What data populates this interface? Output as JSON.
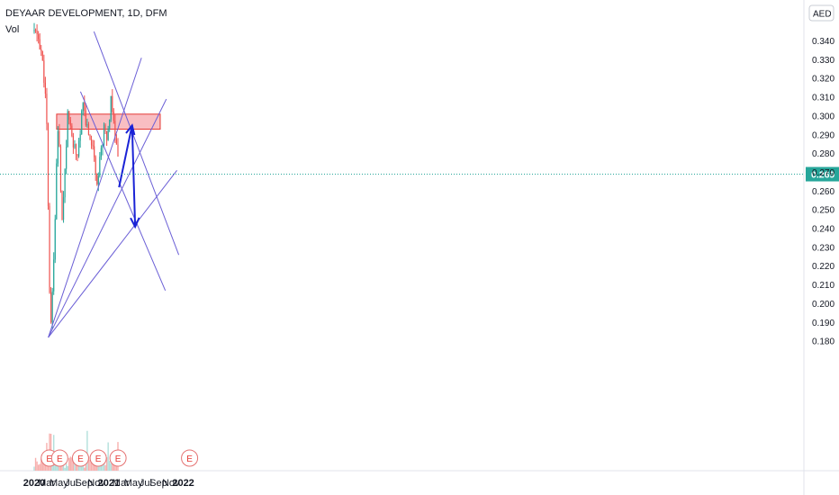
{
  "header": {
    "symbol": "DEYAAR DEVELOPMENT, 1D, DFM",
    "indicator": "Vol"
  },
  "currency_badge": "AED",
  "price_label": "0.269",
  "earnings_marker": "E",
  "colors": {
    "up": "#26a69a",
    "down": "#ef5350",
    "vol_up": "#b2dfdb",
    "vol_down": "#f7b0ae",
    "trendline": "#6b5fd6",
    "arrow": "#1a23d6",
    "zone_fill": "#f7a8ad",
    "zone_stroke": "#e53935",
    "price_tag": "#26a69a"
  },
  "chart_data": {
    "type": "candlestick",
    "title": "",
    "y_ticks": [
      "0.340",
      "0.330",
      "0.320",
      "0.310",
      "0.300",
      "0.290",
      "0.280",
      "0.270",
      "0.260",
      "0.250",
      "0.240",
      "0.230",
      "0.220",
      "0.210",
      "0.200",
      "0.190",
      "0.180"
    ],
    "x_ticks": [
      "2020",
      "Mar",
      "May",
      "Jul",
      "Sep",
      "Nov",
      "2021",
      "Mar",
      "May",
      "Jul",
      "Sep",
      "Nov",
      "2022"
    ],
    "ylim": [
      0.178,
      0.347
    ],
    "last_price": 0.269,
    "resistance_zone": {
      "low": 0.293,
      "high": 0.301,
      "from": "2020-04-20",
      "to": "2021-09-10"
    },
    "earnings_dates": [
      "2020-03-15",
      "2020-05-05",
      "2020-08-15",
      "2020-11-10",
      "2021-02-15",
      "2022-02-01"
    ],
    "trendlines": [
      {
        "from": [
          "2020-03-10",
          0.182
        ],
        "to": [
          "2021-06-10",
          0.331
        ]
      },
      {
        "from": [
          "2020-03-10",
          0.182
        ],
        "to": [
          "2021-10-10",
          0.309
        ]
      },
      {
        "from": [
          "2020-03-10",
          0.182
        ],
        "to": [
          "2021-12-01",
          0.271
        ]
      },
      {
        "from": [
          "2020-08-15",
          0.313
        ],
        "to": [
          "2021-10-05",
          0.207
        ]
      },
      {
        "from": [
          "2020-10-20",
          0.345
        ],
        "to": [
          "2021-12-10",
          0.226
        ]
      }
    ],
    "projection": [
      {
        "from": [
          "2021-02-20",
          0.262
        ],
        "to": [
          "2021-04-25",
          0.295
        ]
      },
      {
        "from": [
          "2021-04-25",
          0.295
        ],
        "to": [
          "2021-05-10",
          0.241
        ]
      }
    ],
    "price_path": [
      [
        "2020-01-01",
        0.345
      ],
      [
        "2020-01-20",
        0.342
      ],
      [
        "2020-02-05",
        0.334
      ],
      [
        "2020-02-20",
        0.318
      ],
      [
        "2020-02-28",
        0.305
      ],
      [
        "2020-03-03",
        0.292
      ],
      [
        "2020-03-07",
        0.268
      ],
      [
        "2020-03-10",
        0.25
      ],
      [
        "2020-03-13",
        0.22
      ],
      [
        "2020-03-17",
        0.2
      ],
      [
        "2020-03-22",
        0.19
      ],
      [
        "2020-03-28",
        0.205
      ],
      [
        "2020-04-05",
        0.222
      ],
      [
        "2020-04-12",
        0.245
      ],
      [
        "2020-04-20",
        0.275
      ],
      [
        "2020-04-26",
        0.292
      ],
      [
        "2020-05-03",
        0.284
      ],
      [
        "2020-05-10",
        0.26
      ],
      [
        "2020-05-17",
        0.246
      ],
      [
        "2020-05-24",
        0.255
      ],
      [
        "2020-06-01",
        0.272
      ],
      [
        "2020-06-08",
        0.286
      ],
      [
        "2020-06-15",
        0.308
      ],
      [
        "2020-06-20",
        0.3
      ],
      [
        "2020-06-28",
        0.292
      ],
      [
        "2020-07-08",
        0.286
      ],
      [
        "2020-07-18",
        0.283
      ],
      [
        "2020-07-28",
        0.279
      ],
      [
        "2020-08-05",
        0.284
      ],
      [
        "2020-08-15",
        0.29
      ],
      [
        "2020-08-22",
        0.309
      ],
      [
        "2020-08-30",
        0.304
      ],
      [
        "2020-09-08",
        0.299
      ],
      [
        "2020-09-18",
        0.293
      ],
      [
        "2020-09-28",
        0.29
      ],
      [
        "2020-10-08",
        0.285
      ],
      [
        "2020-10-18",
        0.282
      ],
      [
        "2020-10-28",
        0.272
      ],
      [
        "2020-11-04",
        0.266
      ],
      [
        "2020-11-12",
        0.27
      ],
      [
        "2020-11-20",
        0.278
      ],
      [
        "2020-11-30",
        0.286
      ],
      [
        "2020-12-08",
        0.294
      ],
      [
        "2020-12-18",
        0.289
      ],
      [
        "2020-12-28",
        0.292
      ],
      [
        "2021-01-08",
        0.3
      ],
      [
        "2021-01-13",
        0.32
      ],
      [
        "2021-01-18",
        0.303
      ],
      [
        "2021-01-25",
        0.296
      ],
      [
        "2021-02-01",
        0.29
      ],
      [
        "2021-02-08",
        0.284
      ],
      [
        "2021-02-15",
        0.277
      ],
      [
        "2021-02-20",
        0.269
      ]
    ]
  }
}
